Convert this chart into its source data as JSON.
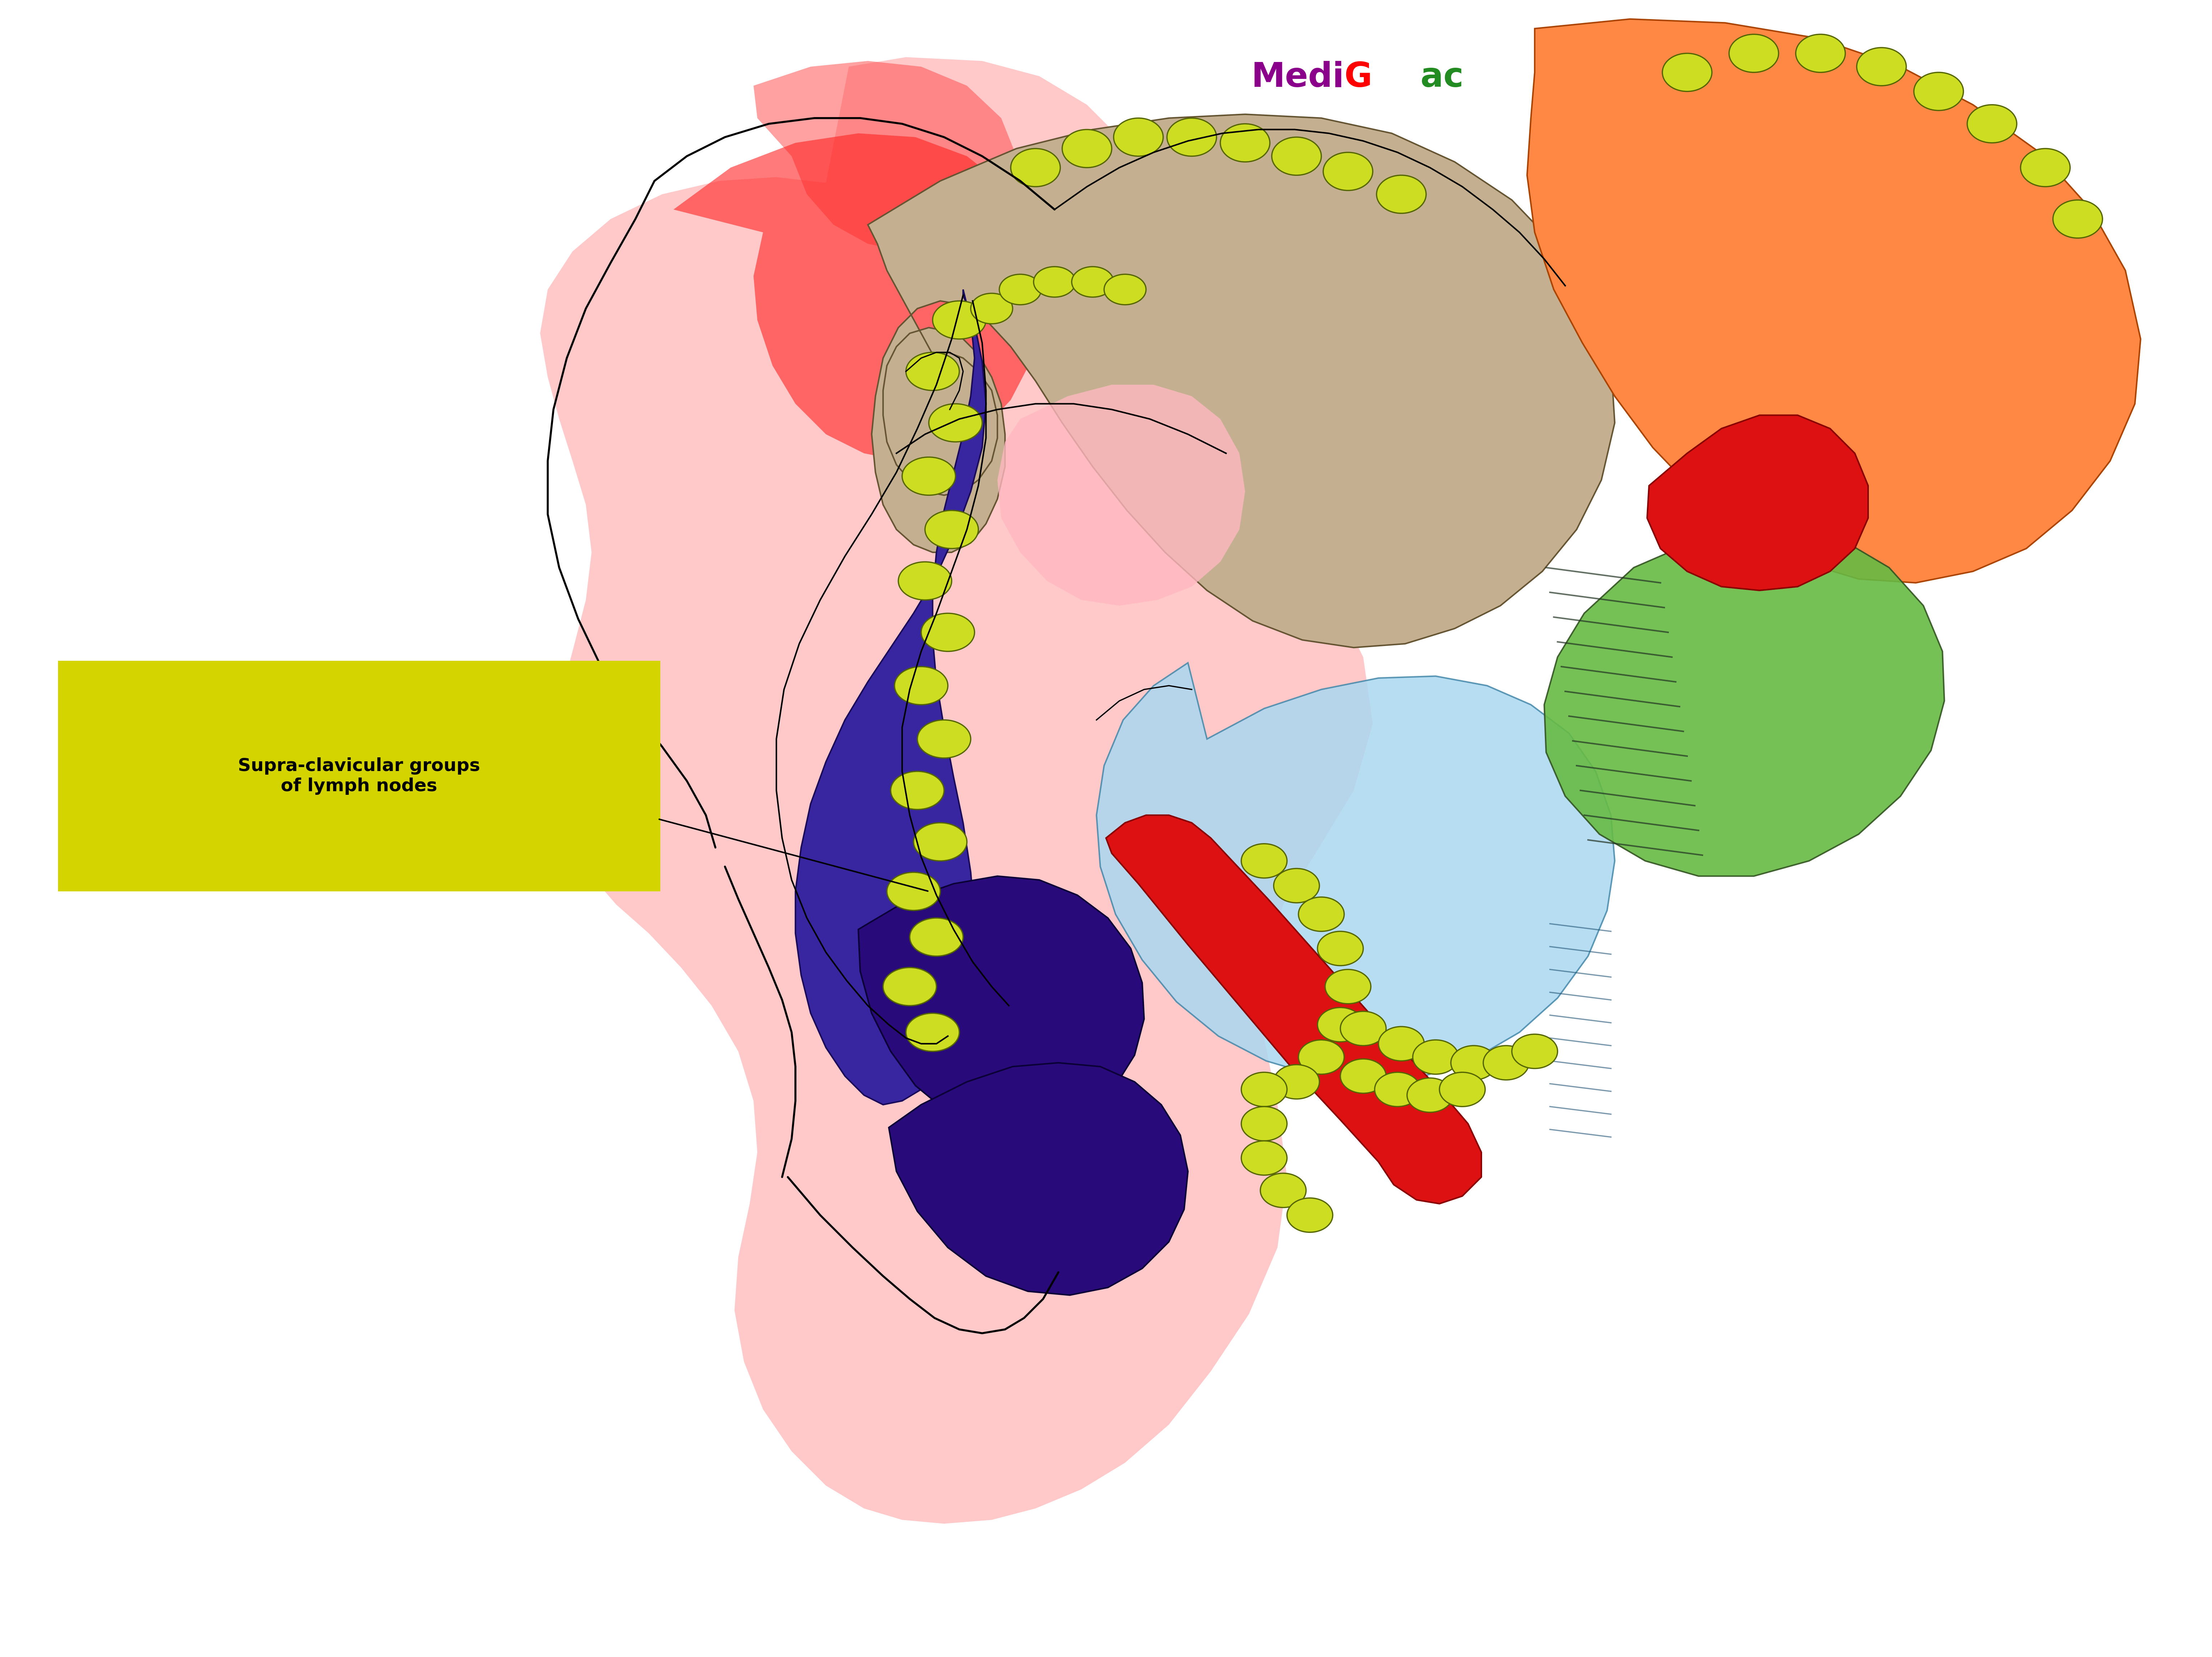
{
  "title_parts": [
    {
      "text": "Medi",
      "color": "#8B008B"
    },
    {
      "text": "G",
      "color": "#FF0000"
    },
    {
      "text": "ac",
      "color": "#228B22"
    }
  ],
  "label_text": "Supra-clavicular groups\nof lymph nodes",
  "label_box_color": "#D4D400",
  "label_text_color": "#000000",
  "background_color": "#FFFFFF",
  "label_fontsize": 36,
  "title_fontsize": 68,
  "figsize": [
    61.37,
    45.99
  ],
  "dpi": 100,
  "xlim": [
    0,
    1130
  ],
  "ylim": [
    0,
    870
  ]
}
